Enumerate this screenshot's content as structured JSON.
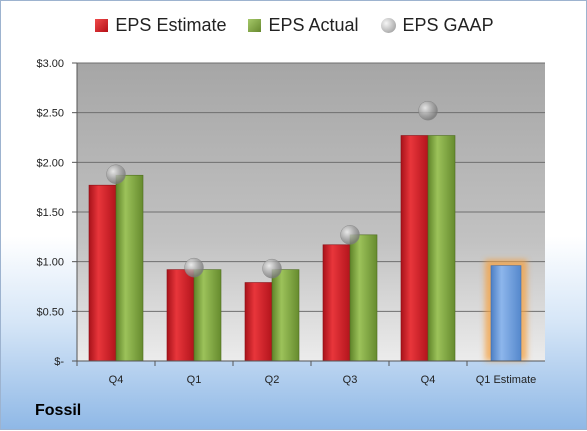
{
  "company": "Fossil",
  "legend": [
    {
      "label": "EPS Estimate",
      "color": "#d01f25"
    },
    {
      "label": "EPS Actual",
      "color": "#7fa642"
    },
    {
      "label": "EPS GAAP",
      "color": "#b0b0b0"
    }
  ],
  "chart_data": {
    "type": "bar",
    "categories": [
      "Q4",
      "Q1",
      "Q2",
      "Q3",
      "Q4",
      "Q1 Estimate"
    ],
    "series": [
      {
        "name": "EPS Estimate",
        "values": [
          1.77,
          0.92,
          0.79,
          1.17,
          2.27,
          null
        ],
        "color": "#d01f25"
      },
      {
        "name": "EPS Actual",
        "values": [
          1.87,
          0.92,
          0.92,
          1.27,
          2.27,
          null
        ],
        "color": "#7fa642"
      },
      {
        "name": "EPS GAAP",
        "values": [
          1.88,
          0.94,
          0.93,
          1.27,
          2.52,
          null
        ],
        "color": "#b0b0b0"
      }
    ],
    "estimate": {
      "category": "Q1 Estimate",
      "value": 0.96,
      "color": "#6d9fde"
    },
    "ylim": [
      0,
      3
    ],
    "yticks": [
      0,
      0.5,
      1,
      1.5,
      2,
      2.5,
      3
    ],
    "ytick_labels": [
      "$-",
      "$0.50",
      "$1.00",
      "$1.50",
      "$2.00",
      "$2.50",
      "$3.00"
    ],
    "grid": true,
    "legend_position": "top"
  }
}
